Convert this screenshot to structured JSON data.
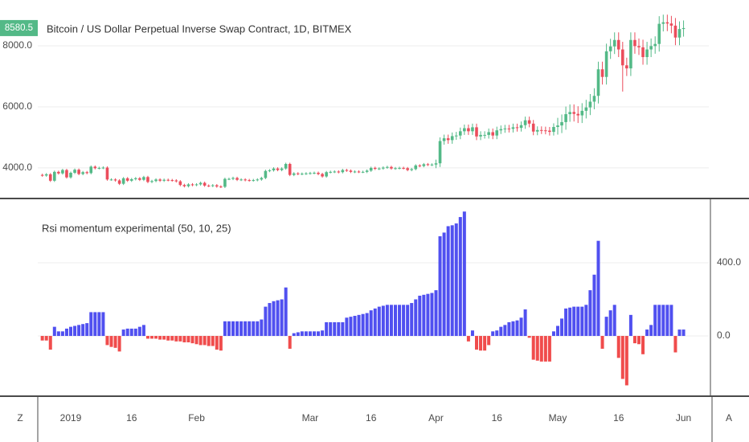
{
  "chart_data": [
    {
      "type": "candlestick",
      "title": "Bitcoin / US Dollar Perpetual Inverse Swap Contract, 1D, BITMEX",
      "categories": [
        null,
        null,
        null,
        null,
        null,
        null,
        null,
        "2019",
        null,
        null,
        null,
        null,
        null,
        null,
        null,
        null,
        null,
        null,
        null,
        null,
        null,
        null,
        "16",
        null,
        null,
        null,
        null,
        null,
        null,
        null,
        null,
        null,
        null,
        null,
        null,
        null,
        null,
        null,
        "Feb",
        null,
        null,
        null,
        null,
        null,
        null,
        null,
        null,
        null,
        null,
        null,
        null,
        null,
        null,
        null,
        null,
        null,
        null,
        null,
        null,
        null,
        null,
        null,
        null,
        null,
        null,
        null,
        "Mar",
        null,
        null,
        null,
        null,
        null,
        null,
        null,
        null,
        null,
        null,
        null,
        null,
        null,
        null,
        "16",
        null,
        null,
        null,
        null,
        null,
        null,
        null,
        null,
        null,
        null,
        null,
        null,
        null,
        null,
        null,
        "Apr",
        null,
        null,
        null,
        null,
        null,
        null,
        null,
        null,
        null,
        null,
        null,
        null,
        null,
        null,
        "16",
        null,
        null,
        null,
        null,
        null,
        null,
        null,
        null,
        null,
        null,
        null,
        null,
        null,
        null,
        "May",
        null,
        null,
        null,
        null,
        null,
        null,
        null,
        null,
        null,
        null,
        null,
        null,
        null,
        null,
        "16",
        null,
        null,
        null,
        null,
        null,
        null,
        null,
        null,
        null,
        null,
        null,
        null,
        null,
        null,
        null,
        "Jun"
      ],
      "ohlc": [
        [
          3770,
          3810,
          3710,
          3750
        ],
        [
          3750,
          3830,
          3710,
          3790
        ],
        [
          3790,
          3830,
          3540,
          3580
        ],
        [
          3580,
          3910,
          3540,
          3870
        ],
        [
          3870,
          3910,
          3780,
          3820
        ],
        [
          3820,
          3970,
          3780,
          3930
        ],
        [
          3930,
          3970,
          3650,
          3690
        ],
        [
          3690,
          3880,
          3650,
          3840
        ],
        [
          3840,
          3980,
          3800,
          3940
        ],
        [
          3940,
          3980,
          3760,
          3800
        ],
        [
          3800,
          3900,
          3760,
          3860
        ],
        [
          3860,
          3900,
          3790,
          3830
        ],
        [
          3830,
          4080,
          3790,
          4040
        ],
        [
          4040,
          4080,
          3950,
          3990
        ],
        [
          3990,
          4040,
          3950,
          4000
        ],
        [
          4000,
          4050,
          3960,
          4010
        ],
        [
          4010,
          4050,
          3580,
          3620
        ],
        [
          3620,
          3660,
          3580,
          3620
        ],
        [
          3620,
          3660,
          3550,
          3590
        ],
        [
          3590,
          3630,
          3440,
          3480
        ],
        [
          3480,
          3700,
          3440,
          3660
        ],
        [
          3660,
          3700,
          3540,
          3580
        ],
        [
          3580,
          3670,
          3540,
          3630
        ],
        [
          3630,
          3700,
          3590,
          3660
        ],
        [
          3660,
          3700,
          3570,
          3610
        ],
        [
          3610,
          3740,
          3570,
          3700
        ],
        [
          3700,
          3740,
          3500,
          3540
        ],
        [
          3540,
          3610,
          3500,
          3570
        ],
        [
          3570,
          3660,
          3530,
          3620
        ],
        [
          3620,
          3660,
          3540,
          3580
        ],
        [
          3580,
          3650,
          3540,
          3610
        ],
        [
          3610,
          3650,
          3560,
          3600
        ],
        [
          3600,
          3640,
          3550,
          3590
        ],
        [
          3590,
          3630,
          3520,
          3560
        ],
        [
          3560,
          3600,
          3400,
          3440
        ],
        [
          3440,
          3480,
          3360,
          3400
        ],
        [
          3400,
          3500,
          3360,
          3460
        ],
        [
          3460,
          3500,
          3400,
          3440
        ],
        [
          3440,
          3500,
          3400,
          3460
        ],
        [
          3460,
          3550,
          3420,
          3510
        ],
        [
          3510,
          3550,
          3380,
          3420
        ],
        [
          3420,
          3460,
          3370,
          3410
        ],
        [
          3410,
          3470,
          3370,
          3430
        ],
        [
          3430,
          3470,
          3350,
          3390
        ],
        [
          3390,
          3430,
          3340,
          3380
        ],
        [
          3380,
          3680,
          3340,
          3640
        ],
        [
          3640,
          3680,
          3600,
          3640
        ],
        [
          3640,
          3710,
          3600,
          3670
        ],
        [
          3670,
          3710,
          3570,
          3610
        ],
        [
          3610,
          3660,
          3570,
          3620
        ],
        [
          3620,
          3660,
          3560,
          3600
        ],
        [
          3600,
          3640,
          3550,
          3590
        ],
        [
          3590,
          3640,
          3550,
          3600
        ],
        [
          3600,
          3660,
          3560,
          3620
        ],
        [
          3620,
          3710,
          3580,
          3670
        ],
        [
          3670,
          3940,
          3630,
          3900
        ],
        [
          3900,
          3960,
          3860,
          3920
        ],
        [
          3920,
          4020,
          3880,
          3980
        ],
        [
          3980,
          4020,
          3890,
          3930
        ],
        [
          3930,
          4020,
          3890,
          3980
        ],
        [
          3980,
          4170,
          3940,
          4130
        ],
        [
          4130,
          4170,
          3730,
          3770
        ],
        [
          3770,
          3860,
          3730,
          3820
        ],
        [
          3820,
          3860,
          3760,
          3800
        ],
        [
          3800,
          3850,
          3760,
          3810
        ],
        [
          3810,
          3860,
          3770,
          3820
        ],
        [
          3820,
          3870,
          3780,
          3830
        ],
        [
          3830,
          3880,
          3790,
          3840
        ],
        [
          3840,
          3880,
          3760,
          3800
        ],
        [
          3800,
          3840,
          3680,
          3720
        ],
        [
          3720,
          3900,
          3680,
          3860
        ],
        [
          3860,
          3910,
          3820,
          3870
        ],
        [
          3870,
          3920,
          3830,
          3880
        ],
        [
          3880,
          3920,
          3820,
          3860
        ],
        [
          3860,
          3970,
          3820,
          3930
        ],
        [
          3930,
          3970,
          3870,
          3910
        ],
        [
          3910,
          3950,
          3830,
          3870
        ],
        [
          3870,
          3920,
          3830,
          3880
        ],
        [
          3880,
          3920,
          3830,
          3870
        ],
        [
          3870,
          3910,
          3830,
          3870
        ],
        [
          3870,
          3950,
          3830,
          3910
        ],
        [
          3910,
          4040,
          3870,
          4000
        ],
        [
          4000,
          4040,
          3930,
          3970
        ],
        [
          3970,
          4020,
          3930,
          3980
        ],
        [
          3980,
          4050,
          3940,
          4010
        ],
        [
          4010,
          4070,
          3970,
          4030
        ],
        [
          4030,
          4070,
          3940,
          3980
        ],
        [
          3980,
          4030,
          3940,
          3990
        ],
        [
          3990,
          4040,
          3950,
          4000
        ],
        [
          4000,
          4040,
          3950,
          3990
        ],
        [
          3990,
          4030,
          3890,
          3930
        ],
        [
          3930,
          4000,
          3890,
          3960
        ],
        [
          3960,
          4120,
          3920,
          4080
        ],
        [
          4080,
          4120,
          4020,
          4060
        ],
        [
          4060,
          4160,
          4020,
          4120
        ],
        [
          4120,
          4160,
          4060,
          4100
        ],
        [
          4100,
          4150,
          4060,
          4110
        ],
        [
          4110,
          4270,
          3990,
          4150
        ],
        [
          4150,
          5000,
          4030,
          4880
        ],
        [
          4880,
          5090,
          4760,
          4970
        ],
        [
          4970,
          5090,
          4790,
          4910
        ],
        [
          4910,
          5160,
          4790,
          5040
        ],
        [
          5040,
          5180,
          4920,
          5060
        ],
        [
          5060,
          5320,
          4940,
          5200
        ],
        [
          5200,
          5420,
          5080,
          5300
        ],
        [
          5300,
          5420,
          5080,
          5200
        ],
        [
          5200,
          5450,
          5080,
          5330
        ],
        [
          5330,
          5450,
          4910,
          5030
        ],
        [
          5030,
          5200,
          4910,
          5080
        ],
        [
          5080,
          5200,
          4960,
          5080
        ],
        [
          5080,
          5290,
          4960,
          5170
        ],
        [
          5170,
          5290,
          4940,
          5060
        ],
        [
          5060,
          5350,
          4940,
          5230
        ],
        [
          5230,
          5390,
          5110,
          5270
        ],
        [
          5270,
          5410,
          5150,
          5290
        ],
        [
          5290,
          5410,
          5160,
          5280
        ],
        [
          5280,
          5450,
          5160,
          5330
        ],
        [
          5330,
          5450,
          5190,
          5310
        ],
        [
          5310,
          5520,
          5190,
          5400
        ],
        [
          5400,
          5680,
          5280,
          5560
        ],
        [
          5560,
          5680,
          5330,
          5450
        ],
        [
          5450,
          5570,
          5070,
          5190
        ],
        [
          5190,
          5360,
          5070,
          5240
        ],
        [
          5240,
          5360,
          5110,
          5230
        ],
        [
          5230,
          5350,
          5100,
          5220
        ],
        [
          5220,
          5340,
          5060,
          5180
        ],
        [
          5180,
          5460,
          5060,
          5340
        ],
        [
          5340,
          5640,
          5090,
          5390
        ],
        [
          5390,
          5750,
          5140,
          5500
        ],
        [
          5500,
          6010,
          5250,
          5760
        ],
        [
          5760,
          6080,
          5510,
          5830
        ],
        [
          5830,
          6080,
          5520,
          5770
        ],
        [
          5770,
          6020,
          5470,
          5720
        ],
        [
          5720,
          6120,
          5470,
          5870
        ],
        [
          5870,
          6230,
          5620,
          5980
        ],
        [
          5980,
          6420,
          5730,
          6170
        ],
        [
          6170,
          6610,
          5920,
          6360
        ],
        [
          6360,
          7480,
          6110,
          7230
        ],
        [
          7230,
          7480,
          6730,
          6980
        ],
        [
          6980,
          8070,
          6730,
          7820
        ],
        [
          7820,
          8230,
          7570,
          7980
        ],
        [
          7980,
          8440,
          7730,
          8190
        ],
        [
          8190,
          8440,
          7630,
          7880
        ],
        [
          7880,
          8130,
          6500,
          7360
        ],
        [
          7360,
          7610,
          7010,
          7260
        ],
        [
          7260,
          8440,
          7010,
          8190
        ],
        [
          8190,
          8440,
          7740,
          7990
        ],
        [
          7990,
          8240,
          7700,
          7950
        ],
        [
          7950,
          8200,
          7380,
          7630
        ],
        [
          7630,
          8130,
          7380,
          7880
        ],
        [
          7880,
          8240,
          7630,
          7990
        ],
        [
          7990,
          8310,
          7740,
          8060
        ],
        [
          8060,
          8970,
          7810,
          8720
        ],
        [
          8720,
          9020,
          8470,
          8770
        ],
        [
          8770,
          9020,
          8480,
          8730
        ],
        [
          8730,
          8980,
          8410,
          8660
        ],
        [
          8660,
          8910,
          8020,
          8270
        ],
        [
          8270,
          8800,
          8020,
          8550
        ],
        [
          8550,
          8830,
          8300,
          8580.5
        ]
      ],
      "up_color": "#53b987",
      "down_color": "#eb4d5c",
      "ylim": [
        3050,
        9500
      ],
      "yticks": [
        {
          "value": 4000,
          "label": "4000.0"
        },
        {
          "value": 6000,
          "label": "6000.0"
        },
        {
          "value": 8000,
          "label": "8000.0"
        }
      ],
      "grid": true
    },
    {
      "type": "bar",
      "title": "Rsi momentum experimental (50, 10, 25)",
      "values": [
        -25,
        -25,
        -75,
        50,
        25,
        25,
        40,
        50,
        55,
        60,
        65,
        70,
        130,
        130,
        130,
        130,
        -50,
        -60,
        -65,
        -85,
        35,
        40,
        40,
        40,
        50,
        60,
        -15,
        -15,
        -15,
        -20,
        -20,
        -25,
        -25,
        -30,
        -30,
        -35,
        -35,
        -40,
        -45,
        -50,
        -50,
        -55,
        -55,
        -75,
        -80,
        80,
        80,
        80,
        80,
        80,
        80,
        80,
        80,
        80,
        90,
        160,
        180,
        190,
        195,
        200,
        265,
        -70,
        15,
        20,
        25,
        25,
        25,
        25,
        25,
        30,
        75,
        75,
        75,
        75,
        75,
        100,
        105,
        110,
        115,
        120,
        125,
        140,
        150,
        160,
        165,
        170,
        170,
        170,
        170,
        170,
        170,
        180,
        200,
        220,
        225,
        230,
        235,
        250,
        545,
        565,
        600,
        605,
        615,
        650,
        680,
        -30,
        30,
        -75,
        -80,
        -80,
        -50,
        25,
        30,
        50,
        60,
        75,
        80,
        85,
        100,
        145,
        -10,
        -130,
        -135,
        -140,
        -140,
        -140,
        25,
        55,
        95,
        150,
        155,
        160,
        160,
        160,
        170,
        250,
        335,
        520,
        -70,
        105,
        140,
        170,
        -120,
        -235,
        -270,
        115,
        -40,
        -45,
        -100,
        35,
        60,
        170,
        170,
        170,
        170,
        170,
        -90,
        35,
        35
      ],
      "positive_color": "#5050f0",
      "negative_color": "#f04c4c",
      "ylim": [
        -325,
        747
      ],
      "yticks": [
        {
          "value": 0,
          "label": "0.0"
        },
        {
          "value": 400,
          "label": "400.0"
        }
      ],
      "grid": true
    }
  ],
  "toolbar": {
    "left": "Z",
    "right": "A"
  }
}
